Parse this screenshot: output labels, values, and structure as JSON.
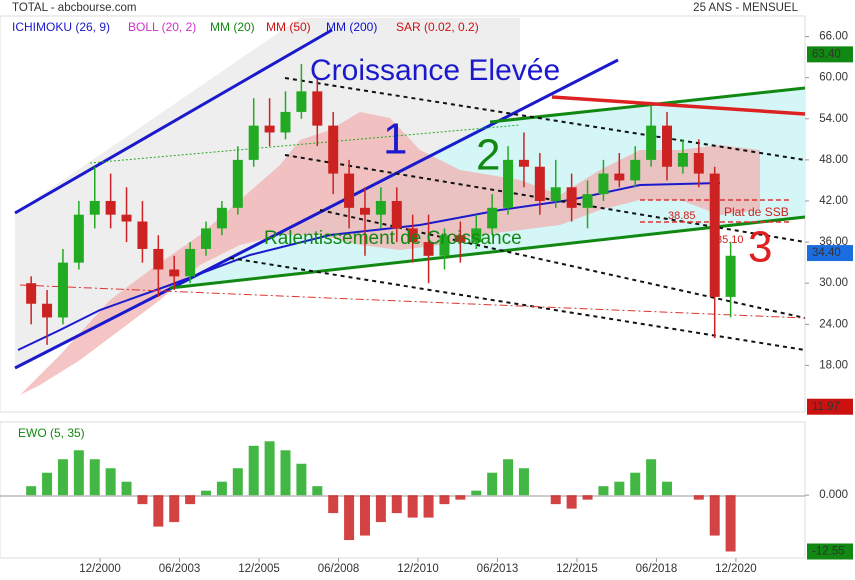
{
  "header": {
    "source": "TOTAL - abcbourse.com",
    "period": "25 ANS - MENSUEL"
  },
  "indicators": [
    {
      "name": "ICHIMOKU (26, 9)",
      "color": "#1a1acc"
    },
    {
      "name": "BOLL (20, 2)",
      "color": "#cc33cc"
    },
    {
      "name": "MM (20)",
      "color": "#118811"
    },
    {
      "name": "MM (50)",
      "color": "#cc1111"
    },
    {
      "name": "MM (200)",
      "color": "#1111cc"
    },
    {
      "name": "SAR (0.02, 0.2)",
      "color": "#cc1111"
    }
  ],
  "annotations": [
    {
      "text": "Croissance Elevée",
      "color": "#1a1acc"
    },
    {
      "text": "1",
      "color": "#1a1acc"
    },
    {
      "text": "2",
      "color": "#118811"
    },
    {
      "text": "3",
      "color": "#e02020"
    },
    {
      "text": "Ralentissement de Croissance",
      "color": "#118811"
    },
    {
      "text": "Plat de SSB",
      "color": "#d02020"
    },
    {
      "text": "38.85",
      "color": "#d02020"
    },
    {
      "text": "35.10",
      "color": "#d02020"
    }
  ],
  "chart_data": [
    {
      "type": "candlestick",
      "x": [
        1998.75,
        1999.25,
        1999.75,
        2000.25,
        2000.75,
        2001.25,
        2001.75,
        2002.25,
        2002.75,
        2003.25,
        2003.75,
        2004.25,
        2004.75,
        2005.25,
        2005.75,
        2006.25,
        2006.75,
        2007.25,
        2007.75,
        2008.25,
        2008.75,
        2009.25,
        2009.75,
        2010.25,
        2010.75,
        2011.25,
        2011.75,
        2012.25,
        2012.75,
        2013.25,
        2013.75,
        2014.25,
        2014.75,
        2015.25,
        2015.75,
        2016.25,
        2016.75,
        2017.25,
        2017.75,
        2018.25,
        2018.75,
        2019.25,
        2019.75,
        2020.25,
        2020.75
      ],
      "open": [
        30,
        27,
        25,
        33,
        40,
        42,
        40,
        39,
        35,
        32,
        31,
        35,
        38,
        41,
        48,
        53,
        52,
        55,
        58,
        53,
        46,
        41,
        40,
        42,
        38,
        36,
        34,
        37,
        36,
        38,
        41,
        48,
        47,
        42,
        44,
        41,
        43,
        46,
        45,
        48,
        53,
        47,
        49,
        46,
        28
      ],
      "high": [
        31,
        29,
        35,
        42,
        47,
        46,
        44,
        42,
        37,
        34,
        36,
        39,
        42,
        50,
        57,
        57,
        58,
        62,
        60,
        55,
        48,
        44,
        44,
        44,
        40,
        40,
        38,
        39,
        40,
        43,
        50,
        52,
        49,
        48,
        46,
        45,
        48,
        49,
        50,
        56,
        55,
        51,
        51,
        47,
        36
      ],
      "low": [
        24,
        21,
        24,
        32,
        38,
        38,
        36,
        33,
        28,
        29,
        30,
        34,
        37,
        40,
        47,
        50,
        51,
        54,
        50,
        43,
        38,
        34,
        38,
        36,
        33,
        30,
        32,
        33,
        35,
        37,
        40,
        44,
        40,
        41,
        39,
        38,
        42,
        44,
        44,
        47,
        45,
        46,
        44,
        22,
        25
      ],
      "close": [
        27,
        25,
        33,
        40,
        42,
        40,
        39,
        35,
        32,
        31,
        35,
        38,
        41,
        48,
        53,
        52,
        55,
        58,
        53,
        46,
        41,
        40,
        42,
        38,
        36,
        34,
        37,
        36,
        38,
        41,
        48,
        47,
        42,
        44,
        41,
        43,
        46,
        45,
        48,
        53,
        47,
        49,
        46,
        28,
        34
      ],
      "up_color": "#22aa22",
      "down_color": "#cc2222",
      "xlim": [
        1997.77,
        2023.09
      ],
      "xticks": [
        {
          "value": 2000.917,
          "label": "12/2000"
        },
        {
          "value": 2003.417,
          "label": "06/2003"
        },
        {
          "value": 2005.917,
          "label": "12/2005"
        },
        {
          "value": 2008.417,
          "label": "06/2008"
        },
        {
          "value": 2010.917,
          "label": "12/2010"
        },
        {
          "value": 2013.417,
          "label": "06/2013"
        },
        {
          "value": 2015.917,
          "label": "12/2015"
        },
        {
          "value": 2018.417,
          "label": "06/2018"
        },
        {
          "value": 2020.917,
          "label": "12/2020"
        }
      ],
      "ylim": [
        11.2,
        69
      ],
      "yticks": [
        {
          "value": 18,
          "label": "18.00"
        },
        {
          "value": 24,
          "label": "24.00"
        },
        {
          "value": 30,
          "label": "30.00"
        },
        {
          "value": 36,
          "label": "36.00"
        },
        {
          "value": 42,
          "label": "42.00"
        },
        {
          "value": 48,
          "label": "48.00"
        },
        {
          "value": 54,
          "label": "54.00"
        },
        {
          "value": 60,
          "label": "60.00"
        },
        {
          "value": 66,
          "label": "66.00"
        }
      ],
      "value_tags": [
        {
          "value": 63.4,
          "label": "63.40",
          "color": "#118811"
        },
        {
          "value": 34.4,
          "label": "34.40",
          "color": "#1a6ee0"
        },
        {
          "value": 11.97,
          "label": "11.97",
          "color": "#cc1111"
        }
      ]
    },
    {
      "type": "bar",
      "title": "EWO (5, 35)",
      "x": [
        1998.75,
        1999.25,
        1999.75,
        2000.25,
        2000.75,
        2001.25,
        2001.75,
        2002.25,
        2002.75,
        2003.25,
        2003.75,
        2004.25,
        2004.75,
        2005.25,
        2005.75,
        2006.25,
        2006.75,
        2007.25,
        2007.75,
        2008.25,
        2008.75,
        2009.25,
        2009.75,
        2010.25,
        2010.75,
        2011.25,
        2011.75,
        2012.25,
        2012.75,
        2013.25,
        2013.75,
        2014.25,
        2014.75,
        2015.25,
        2015.75,
        2016.25,
        2016.75,
        2017.25,
        2017.75,
        2018.25,
        2018.75,
        2019.25,
        2019.75,
        2020.25,
        2020.75
      ],
      "values": [
        2,
        5,
        8,
        10,
        8,
        6,
        3,
        -2,
        -7,
        -6,
        -2,
        1,
        3,
        6,
        11,
        12,
        10,
        7,
        2,
        -4,
        -10,
        -9,
        -6,
        -4,
        -5,
        -5,
        -2,
        -1,
        1,
        5,
        8,
        6,
        0,
        -2,
        -3,
        -1,
        2,
        3,
        5,
        8,
        3,
        0,
        -1,
        -9,
        -12.55
      ],
      "pos_color": "#22aa22",
      "neg_color": "#cc2222",
      "xlim": [
        1997.77,
        2023.09
      ],
      "ylim": [
        -14,
        16.3
      ],
      "yticks": [
        {
          "value": 0,
          "label": "0.000"
        }
      ],
      "value_tags": [
        {
          "value": -12.55,
          "label": "-12.55",
          "color": "#118811"
        }
      ]
    }
  ]
}
